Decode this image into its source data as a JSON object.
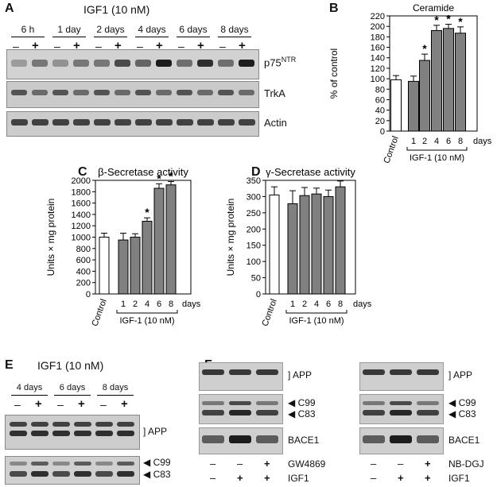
{
  "panelA": {
    "label": "A",
    "title": "IGF1 (10 nM)",
    "timepoints": [
      "6 h",
      "1 day",
      "2 days",
      "4 days",
      "6 days",
      "8 days"
    ],
    "minus": "–",
    "plus": "+",
    "rows": [
      {
        "label": "p75",
        "sup": "NTR"
      },
      {
        "label": "TrkA",
        "sup": ""
      },
      {
        "label": "Actin",
        "sup": ""
      }
    ],
    "p75_intensity": [
      0.25,
      0.45,
      0.3,
      0.45,
      0.45,
      0.7,
      0.55,
      0.95,
      0.5,
      0.85,
      0.5,
      0.95
    ]
  },
  "panelE": {
    "label": "E",
    "title": "IGF1 (10 nM)",
    "timepoints": [
      "4 days",
      "6 days",
      "8 days"
    ],
    "minus": "–",
    "plus": "+",
    "app_label": "APP",
    "c99_label": "C99",
    "c83_label": "C83"
  },
  "panelF": {
    "label": "F",
    "left": {
      "app_label": "APP",
      "c99_label": "C99",
      "c83_label": "C83",
      "bace_label": "BACE1",
      "treatment_row1": {
        "name": "GW4869",
        "signs": [
          "–",
          "–",
          "+"
        ]
      },
      "treatment_row2": {
        "name": "IGF1",
        "signs": [
          "–",
          "+",
          "+"
        ]
      }
    },
    "right": {
      "app_label": "APP",
      "c99_label": "C99",
      "c83_label": "C83",
      "bace_label": "BACE1",
      "treatment_row1": {
        "name": "NB-DGJ",
        "signs": [
          "–",
          "–",
          "+"
        ]
      },
      "treatment_row2": {
        "name": "IGF1",
        "signs": [
          "–",
          "+",
          "+"
        ]
      }
    }
  },
  "chart_data": [
    {
      "panel": "B",
      "type": "bar",
      "title": "Ceramide",
      "ylabel": "% of control",
      "ylim": [
        0,
        220
      ],
      "yticks": [
        0,
        20,
        40,
        60,
        80,
        100,
        120,
        140,
        160,
        180,
        200,
        220
      ],
      "categories": [
        "Control",
        "1",
        "2",
        "4",
        "6",
        "8"
      ],
      "values": [
        98,
        95,
        135,
        192,
        196,
        187
      ],
      "errors": [
        8,
        10,
        12,
        10,
        8,
        12
      ],
      "significant": [
        false,
        false,
        true,
        true,
        true,
        true
      ],
      "x_unit": "days",
      "group_label": "IGF-1 (10 nM)",
      "colors": {
        "control": "#ffffff",
        "treated": "#808080"
      }
    },
    {
      "panel": "C",
      "type": "bar",
      "title": "β-Secretase activity",
      "ylabel": "Units × mg protein",
      "ylim": [
        0,
        2000
      ],
      "yticks": [
        0,
        200,
        400,
        600,
        800,
        1000,
        1200,
        1400,
        1600,
        1800,
        2000
      ],
      "categories": [
        "Control",
        "1",
        "2",
        "4",
        "6",
        "8"
      ],
      "values": [
        1000,
        950,
        1000,
        1280,
        1860,
        1920
      ],
      "errors": [
        70,
        120,
        60,
        60,
        80,
        60
      ],
      "significant": [
        false,
        false,
        false,
        true,
        true,
        true
      ],
      "x_unit": "days",
      "group_label": "IGF-1 (10 nM)",
      "colors": {
        "control": "#ffffff",
        "treated": "#808080"
      }
    },
    {
      "panel": "D",
      "type": "bar",
      "title": "γ-Secretase activity",
      "ylabel": "Units × mg protein",
      "ylim": [
        0,
        350
      ],
      "yticks": [
        0,
        50,
        100,
        150,
        200,
        250,
        300,
        350
      ],
      "categories": [
        "Control",
        "1",
        "2",
        "4",
        "6",
        "8"
      ],
      "values": [
        305,
        278,
        303,
        308,
        300,
        330
      ],
      "errors": [
        25,
        40,
        25,
        18,
        20,
        18
      ],
      "significant": [
        false,
        false,
        false,
        false,
        false,
        false
      ],
      "x_unit": "days",
      "group_label": "IGF-1 (10 nM)",
      "colors": {
        "control": "#ffffff",
        "treated": "#808080"
      }
    }
  ]
}
